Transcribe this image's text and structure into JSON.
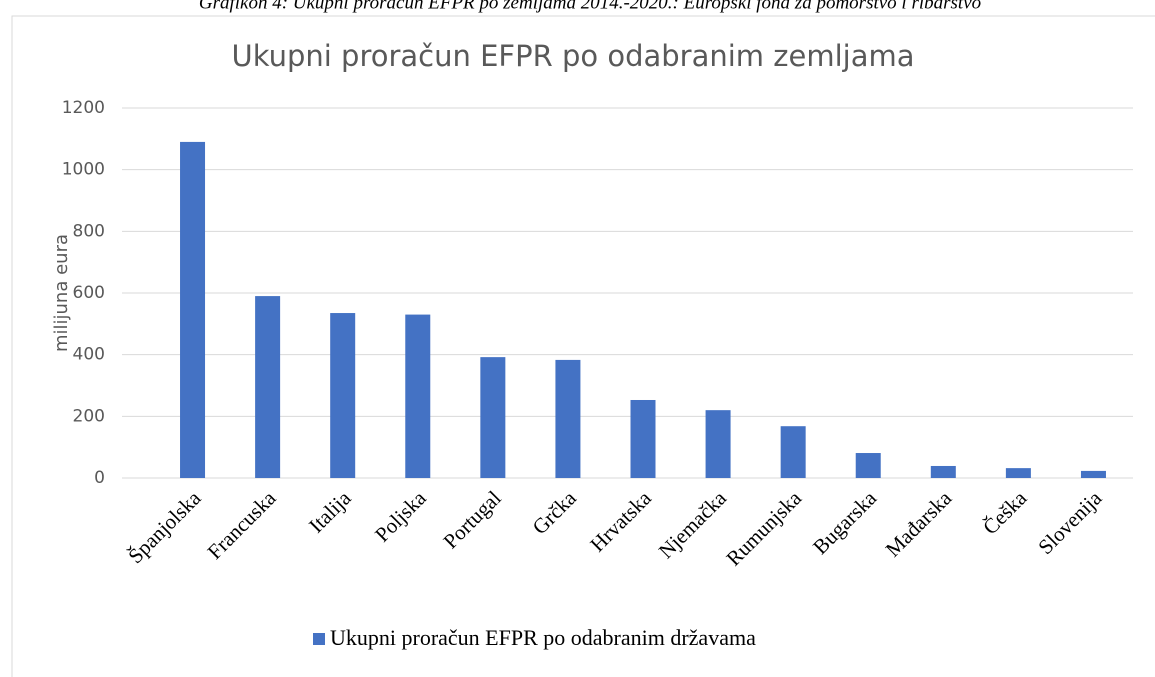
{
  "caption": "Grafikon 4: Ukupni proračun EFPR po zemljama 2014.-2020.: Europski fond za pomorstvo i ribarstvo",
  "chart_data": {
    "type": "bar",
    "title": "Ukupni proračun EFPR po odabranim zemljama",
    "y_label": "milijuna eura",
    "categories": [
      "Španjolska",
      "Francuska",
      "Italija",
      "Poljska",
      "Portugal",
      "Grčka",
      "Hrvatska",
      "Njemačka",
      "Rumunjska",
      "Bugarska",
      "Mađarska",
      "Češka",
      "Slovenija"
    ],
    "series": [
      {
        "name": "Ukupni proračun EFPR po odabranim državama",
        "color": "#4472c4",
        "values": [
          1090,
          590,
          535,
          530,
          392,
          383,
          253,
          220,
          168,
          81,
          39,
          32,
          23
        ]
      }
    ],
    "ylim": [
      0,
      1200
    ],
    "yticks": [
      0,
      200,
      400,
      600,
      800,
      1000,
      1200
    ],
    "grid": true,
    "legend": "bottom"
  }
}
